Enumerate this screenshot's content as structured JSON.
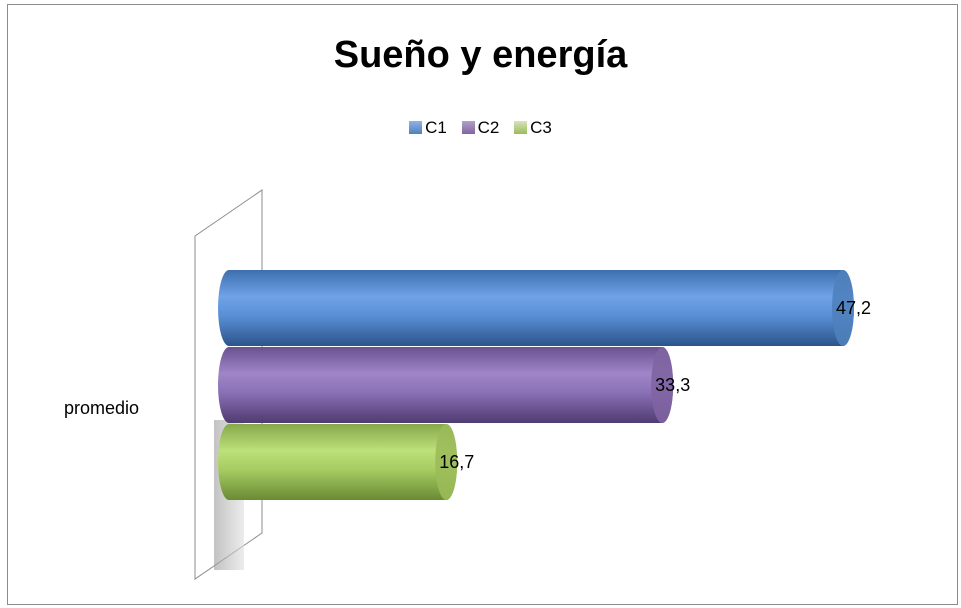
{
  "chart_data": {
    "type": "bar",
    "orientation": "horizontal",
    "title": "Sueño y energía",
    "categories": [
      "promedio"
    ],
    "series": [
      {
        "name": "C1",
        "values": [
          47.2
        ],
        "label": "47,2",
        "color": "#4f81bd"
      },
      {
        "name": "C2",
        "values": [
          33.3
        ],
        "label": "33,3",
        "color": "#8064a2"
      },
      {
        "name": "C3",
        "values": [
          16.7
        ],
        "label": "16,7",
        "color": "#9bbb59"
      }
    ],
    "legend_position": "top",
    "grid": false,
    "xlim": [
      0,
      50
    ]
  }
}
